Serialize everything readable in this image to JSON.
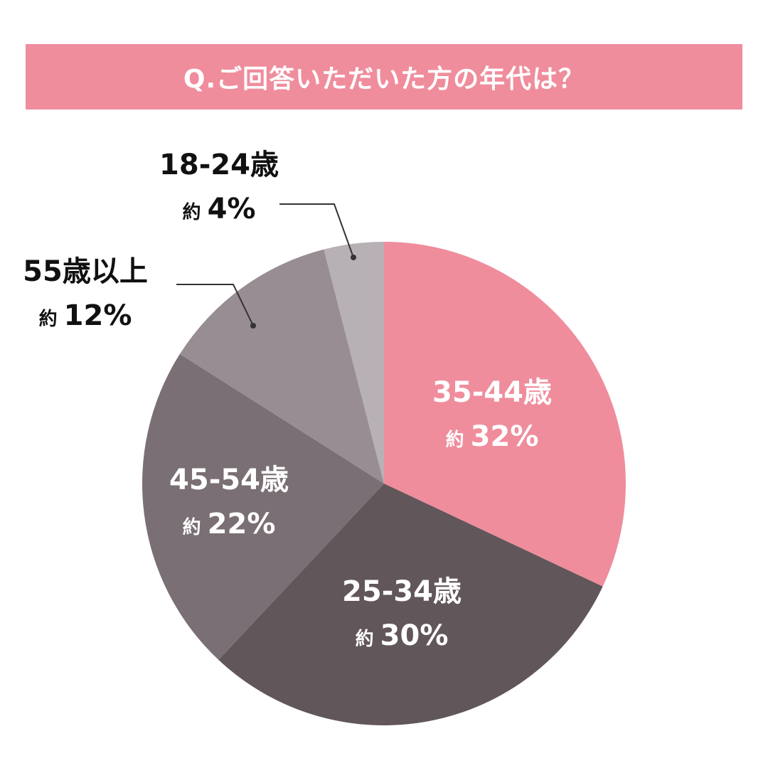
{
  "title": "Q.ご回答いただいた方の年代は？",
  "colors": {
    "title_bg": "#ef8d9d",
    "label_inside": "#ffffff",
    "label_outside": "#111111",
    "leader": "#333333"
  },
  "chart_data": {
    "type": "pie",
    "prefix": "約",
    "slices": [
      {
        "label": "35-44歳",
        "value": 32,
        "pct_text": "32%",
        "color": "#ef8d9d"
      },
      {
        "label": "25-34歳",
        "value": 30,
        "pct_text": "30%",
        "color": "#615659"
      },
      {
        "label": "45-54歳",
        "value": 22,
        "pct_text": "22%",
        "color": "#7a6f74"
      },
      {
        "label": "55歳以上",
        "value": 12,
        "pct_text": "12%",
        "color": "#988d92"
      },
      {
        "label": "18-24歳",
        "value": 4,
        "pct_text": "4%",
        "color": "#b7b1b5"
      }
    ]
  }
}
